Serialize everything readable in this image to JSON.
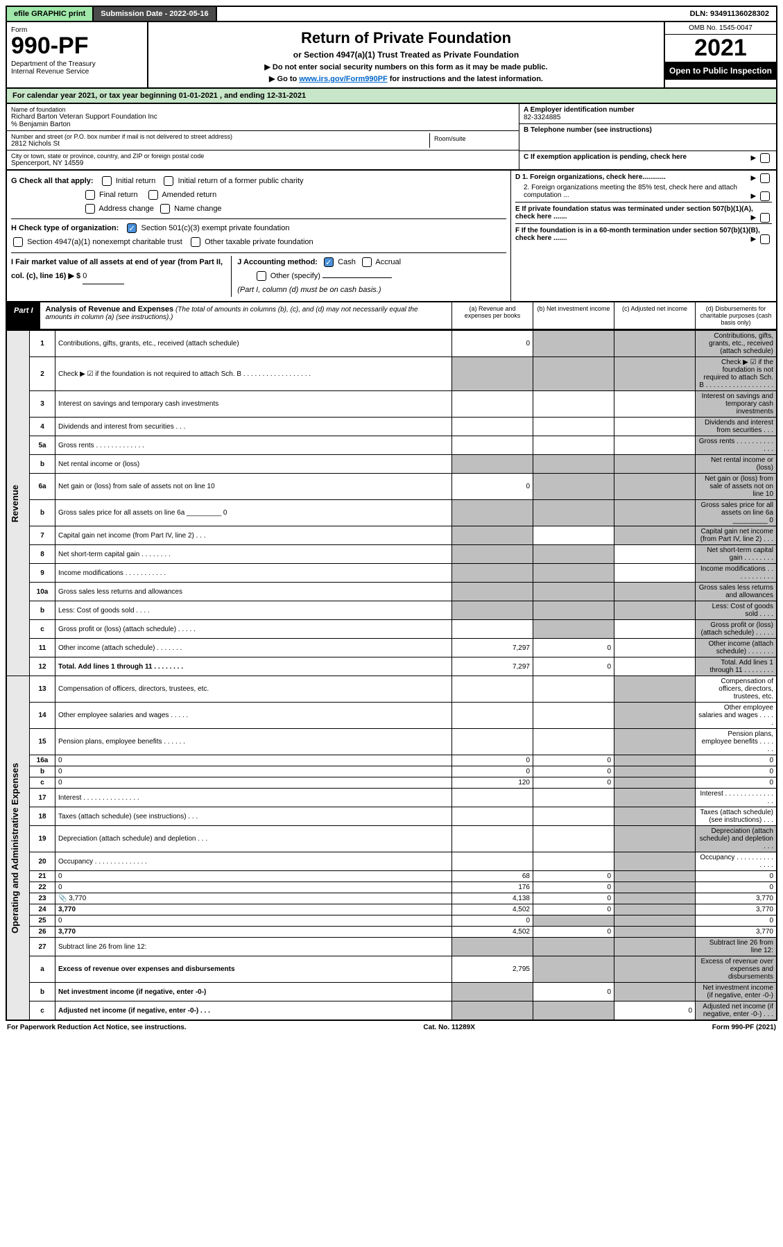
{
  "topbar": {
    "efile": "efile GRAPHIC print",
    "submission": "Submission Date - 2022-05-16",
    "dln": "DLN: 93491136028302"
  },
  "header": {
    "form_word": "Form",
    "form_number": "990-PF",
    "dept": "Department of the Treasury\nInternal Revenue Service",
    "title": "Return of Private Foundation",
    "subtitle": "or Section 4947(a)(1) Trust Treated as Private Foundation",
    "note1": "▶ Do not enter social security numbers on this form as it may be made public.",
    "note2_prefix": "▶ Go to ",
    "note2_link": "www.irs.gov/Form990PF",
    "note2_suffix": " for instructions and the latest information.",
    "omb": "OMB No. 1545-0047",
    "year": "2021",
    "open": "Open to Public Inspection"
  },
  "calendar": "For calendar year 2021, or tax year beginning 01-01-2021              , and ending 12-31-2021",
  "foundation": {
    "name_label": "Name of foundation",
    "name": "Richard Barton Veteran Support Foundation Inc",
    "care_of": "% Benjamin Barton",
    "addr_label": "Number and street (or P.O. box number if mail is not delivered to street address)",
    "addr": "2812 Nichols St",
    "suite_label": "Room/suite",
    "city_label": "City or town, state or province, country, and ZIP or foreign postal code",
    "city": "Spencerport, NY  14559"
  },
  "right_info": {
    "a": "A Employer identification number",
    "a_val": "82-3324885",
    "b": "B Telephone number (see instructions)",
    "c": "C If exemption application is pending, check here",
    "d1": "D 1. Foreign organizations, check here............",
    "d2": "2. Foreign organizations meeting the 85% test, check here and attach computation ...",
    "e": "E If private foundation status was terminated under section 507(b)(1)(A), check here .......",
    "f": "F If the foundation is in a 60-month termination under section 507(b)(1)(B), check here ......."
  },
  "g_section": {
    "g": "G Check all that apply:",
    "opts": [
      "Initial return",
      "Initial return of a former public charity",
      "Final return",
      "Amended return",
      "Address change",
      "Name change"
    ],
    "h": "H Check type of organization:",
    "h1": "Section 501(c)(3) exempt private foundation",
    "h2": "Section 4947(a)(1) nonexempt charitable trust",
    "h3": "Other taxable private foundation",
    "i": "I Fair market value of all assets at end of year (from Part II, col. (c), line 16) ▶ $ ",
    "i_val": "0",
    "j": "J Accounting method:",
    "j_cash": "Cash",
    "j_accrual": "Accrual",
    "j_other": "Other (specify)",
    "j_note": "(Part I, column (d) must be on cash basis.)"
  },
  "part1": {
    "label": "Part I",
    "title": "Analysis of Revenue and Expenses",
    "desc": "(The total of amounts in columns (b), (c), and (d) may not necessarily equal the amounts in column (a) (see instructions).)",
    "cols": {
      "a": "(a) Revenue and expenses per books",
      "b": "(b) Net investment income",
      "c": "(c) Adjusted net income",
      "d": "(d) Disbursements for charitable purposes (cash basis only)"
    }
  },
  "sections": {
    "revenue": "Revenue",
    "expenses": "Operating and Administrative Expenses"
  },
  "lines": [
    {
      "n": "1",
      "d": "Contributions, gifts, grants, etc., received (attach schedule)",
      "a": "0",
      "shade": [
        "b",
        "c",
        "d"
      ]
    },
    {
      "n": "2",
      "d": "Check ▶ ☑ if the foundation is not required to attach Sch. B     . . . . . . . . . . . . . . . . . .",
      "shade": [
        "a",
        "b",
        "c",
        "d"
      ]
    },
    {
      "n": "3",
      "d": "Interest on savings and temporary cash investments",
      "shade": [
        "d"
      ]
    },
    {
      "n": "4",
      "d": "Dividends and interest from securities   . . .",
      "shade": [
        "d"
      ]
    },
    {
      "n": "5a",
      "d": "Gross rents    . . . . . . . . . . . . .",
      "shade": [
        "d"
      ]
    },
    {
      "n": "b",
      "d": "Net rental income or (loss)",
      "shade": [
        "a",
        "b",
        "c",
        "d"
      ]
    },
    {
      "n": "6a",
      "d": "Net gain or (loss) from sale of assets not on line 10",
      "a": "0",
      "shade": [
        "b",
        "c",
        "d"
      ]
    },
    {
      "n": "b",
      "d": "Gross sales price for all assets on line 6a _________ 0",
      "shade": [
        "a",
        "b",
        "c",
        "d"
      ]
    },
    {
      "n": "7",
      "d": "Capital gain net income (from Part IV, line 2)   . . .",
      "shade": [
        "a",
        "c",
        "d"
      ]
    },
    {
      "n": "8",
      "d": "Net short-term capital gain  . . . . . . . .",
      "shade": [
        "a",
        "b",
        "d"
      ]
    },
    {
      "n": "9",
      "d": "Income modifications  . . . . . . . . . . .",
      "shade": [
        "a",
        "b",
        "d"
      ]
    },
    {
      "n": "10a",
      "d": "Gross sales less returns and allowances",
      "shade": [
        "a",
        "b",
        "c",
        "d"
      ]
    },
    {
      "n": "b",
      "d": "Less: Cost of goods sold    . . . .",
      "shade": [
        "a",
        "b",
        "c",
        "d"
      ]
    },
    {
      "n": "c",
      "d": "Gross profit or (loss) (attach schedule)    . . . . .",
      "shade": [
        "b",
        "d"
      ]
    },
    {
      "n": "11",
      "d": "Other income (attach schedule)    . . . . . . .",
      "a": "7,297",
      "b": "0",
      "shade": [
        "d"
      ]
    },
    {
      "n": "12",
      "d": "Total. Add lines 1 through 11   . . . . . . . .",
      "a": "7,297",
      "b": "0",
      "bold": true,
      "shade": [
        "d"
      ]
    },
    {
      "n": "13",
      "d": "Compensation of officers, directors, trustees, etc.",
      "shade": [
        "c"
      ]
    },
    {
      "n": "14",
      "d": "Other employee salaries and wages   . . . . .",
      "shade": [
        "c"
      ]
    },
    {
      "n": "15",
      "d": "Pension plans, employee benefits  . . . . . .",
      "shade": [
        "c"
      ]
    },
    {
      "n": "16a",
      "d": "0",
      "a": "0",
      "b": "0",
      "shade": [
        "c"
      ]
    },
    {
      "n": "b",
      "d": "0",
      "a": "0",
      "b": "0",
      "shade": [
        "c"
      ]
    },
    {
      "n": "c",
      "d": "0",
      "a": "120",
      "b": "0",
      "shade": [
        "c"
      ]
    },
    {
      "n": "17",
      "d": "Interest . . . . . . . . . . . . . . .",
      "shade": [
        "c"
      ]
    },
    {
      "n": "18",
      "d": "Taxes (attach schedule) (see instructions)    . . .",
      "shade": [
        "c"
      ]
    },
    {
      "n": "19",
      "d": "Depreciation (attach schedule) and depletion   . . .",
      "shade": [
        "c",
        "d"
      ]
    },
    {
      "n": "20",
      "d": "Occupancy . . . . . . . . . . . . . .",
      "shade": [
        "c"
      ]
    },
    {
      "n": "21",
      "d": "0",
      "a": "68",
      "b": "0",
      "shade": [
        "c"
      ]
    },
    {
      "n": "22",
      "d": "0",
      "a": "176",
      "b": "0",
      "shade": [
        "c"
      ]
    },
    {
      "n": "23",
      "d": "3,770",
      "a": "4,138",
      "b": "0",
      "icon": true,
      "shade": [
        "c"
      ]
    },
    {
      "n": "24",
      "d": "3,770",
      "a": "4,502",
      "b": "0",
      "bold": true,
      "shade": [
        "c"
      ]
    },
    {
      "n": "25",
      "d": "0",
      "a": "0",
      "shade": [
        "b",
        "c"
      ]
    },
    {
      "n": "26",
      "d": "3,770",
      "a": "4,502",
      "b": "0",
      "bold": true,
      "shade": [
        "c"
      ]
    },
    {
      "n": "27",
      "d": "Subtract line 26 from line 12:",
      "shade": [
        "a",
        "b",
        "c",
        "d"
      ]
    },
    {
      "n": "a",
      "d": "Excess of revenue over expenses and disbursements",
      "a": "2,795",
      "bold": true,
      "shade": [
        "b",
        "c",
        "d"
      ]
    },
    {
      "n": "b",
      "d": "Net investment income (if negative, enter -0-)",
      "b": "0",
      "bold": true,
      "shade": [
        "a",
        "c",
        "d"
      ]
    },
    {
      "n": "c",
      "d": "Adjusted net income (if negative, enter -0-)   . . .",
      "c": "0",
      "bold": true,
      "shade": [
        "a",
        "b",
        "d"
      ]
    }
  ],
  "footer": {
    "left": "For Paperwork Reduction Act Notice, see instructions.",
    "mid": "Cat. No. 11289X",
    "right": "Form 990-PF (2021)"
  }
}
